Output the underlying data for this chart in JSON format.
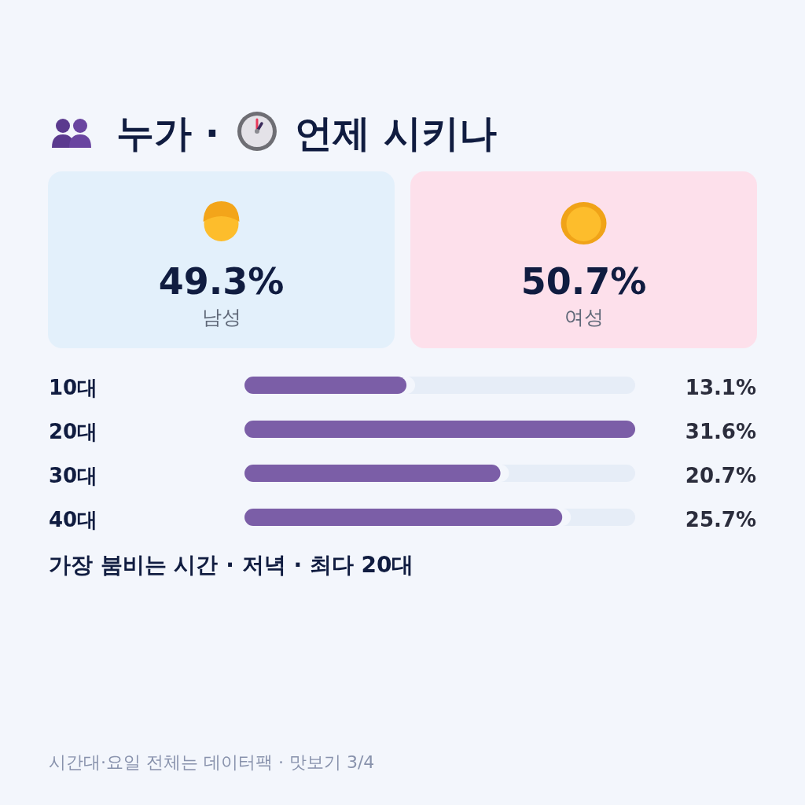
{
  "chart_data": [
    {
      "type": "other",
      "title": "누가 · 언제 시키나",
      "categories": [
        "남성",
        "여성"
      ],
      "value_labels": [
        "49.3%",
        "50.7%"
      ],
      "colors": [
        "#e3f0fb",
        "#fde0eb"
      ]
    },
    {
      "type": "bar",
      "orientation": "horizontal",
      "categories": [
        "10대",
        "20대",
        "30대",
        "40대"
      ],
      "values": [
        13.1,
        31.6,
        20.7,
        25.7
      ],
      "value_labels": [
        "13.1%",
        "31.6%",
        "20.7%",
        "25.7%"
      ],
      "color": "#7b5ea7",
      "annotations": [
        "가장 붐비는 시간 · 저녁 · 최다 20대",
        "시간대·요일 전체는 데이터팩 · 맛보기 3/4"
      ]
    }
  ]
}
